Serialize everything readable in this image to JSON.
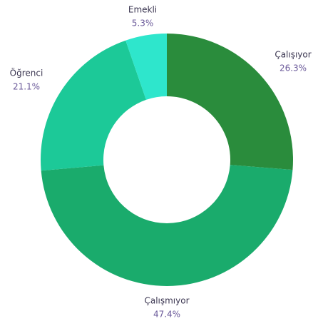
{
  "chart_data": {
    "type": "donut",
    "categories": [
      "Çalışıyor",
      "Çalışmıyor",
      "Öğrenci",
      "Emekli"
    ],
    "values": [
      26.3,
      47.4,
      21.1,
      5.3
    ],
    "value_labels": [
      "26.3%",
      "47.4%",
      "21.1%",
      "5.3%"
    ],
    "colors": [
      "#2a8c3c",
      "#1aab6c",
      "#1cc998",
      "#2ee6cc"
    ]
  }
}
